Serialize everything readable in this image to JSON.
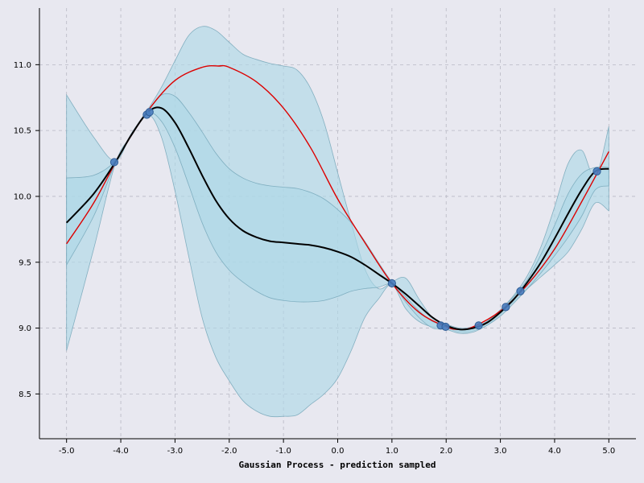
{
  "chart_data": {
    "type": "line",
    "title": "",
    "xlabel": "Gaussian Process - prediction sampled",
    "ylabel": "",
    "xlim": [
      -5.5,
      5.5
    ],
    "ylim": [
      8.16,
      11.43
    ],
    "x_ticks": [
      -5.0,
      -4.0,
      -3.0,
      -2.0,
      -1.0,
      0.0,
      1.0,
      2.0,
      3.0,
      4.0,
      5.0
    ],
    "x_tick_labels": [
      "-5.0",
      "-4.0",
      "-3.0",
      "-2.0",
      "-1.0",
      "0.0",
      "1.0",
      "2.0",
      "3.0",
      "4.0",
      "5.0"
    ],
    "y_ticks": [
      8.5,
      9.0,
      9.5,
      10.0,
      10.5,
      11.0
    ],
    "y_tick_labels": [
      "8.5",
      "9.0",
      "9.5",
      "10.0",
      "10.5",
      "11.0"
    ],
    "grid": true,
    "colors": {
      "background": "#e8e8f0",
      "band_fill": "#add8e6",
      "band_stroke": "#6fa3b5",
      "true_function": "#dd0000",
      "mean": "#000000",
      "points": "#4a7dbf",
      "grid": "#b8b8c4"
    },
    "series": [
      {
        "role": "true-function",
        "x": [
          -5.0,
          -4.5,
          -4.0,
          -3.5,
          -3.0,
          -2.5,
          -2.2,
          -2.0,
          -1.5,
          -1.0,
          -0.5,
          0.0,
          0.5,
          1.0,
          1.5,
          2.0,
          2.25,
          2.5,
          3.0,
          3.5,
          4.0,
          4.5,
          5.0
        ],
        "y": [
          9.64,
          9.95,
          10.33,
          10.65,
          10.88,
          10.98,
          10.99,
          10.98,
          10.87,
          10.67,
          10.37,
          9.98,
          9.65,
          9.34,
          9.12,
          9.01,
          8.99,
          9.01,
          9.13,
          9.33,
          9.6,
          9.96,
          10.34
        ]
      },
      {
        "role": "posterior-mean",
        "x": [
          -5.0,
          -4.5,
          -4.1,
          -3.8,
          -3.5,
          -3.25,
          -3.0,
          -2.75,
          -2.5,
          -2.25,
          -2.0,
          -1.75,
          -1.5,
          -1.25,
          -1.0,
          -0.75,
          -0.5,
          -0.25,
          0.0,
          0.25,
          0.5,
          0.75,
          1.0,
          1.25,
          1.5,
          1.75,
          2.0,
          2.25,
          2.5,
          2.75,
          3.0,
          3.25,
          3.5,
          3.75,
          4.0,
          4.25,
          4.5,
          4.75,
          5.0
        ],
        "y": [
          9.8,
          10.02,
          10.26,
          10.47,
          10.64,
          10.67,
          10.56,
          10.37,
          10.16,
          9.97,
          9.83,
          9.74,
          9.69,
          9.66,
          9.65,
          9.64,
          9.63,
          9.61,
          9.58,
          9.54,
          9.48,
          9.41,
          9.34,
          9.26,
          9.17,
          9.08,
          9.02,
          8.99,
          9.0,
          9.04,
          9.12,
          9.22,
          9.35,
          9.5,
          9.68,
          9.87,
          10.05,
          10.19,
          10.21
        ]
      }
    ],
    "bands": [
      {
        "role": "outer-band",
        "x": [
          -5.0,
          -4.5,
          -4.1,
          -3.8,
          -3.5,
          -3.25,
          -3.0,
          -2.75,
          -2.5,
          -2.25,
          -2.0,
          -1.75,
          -1.5,
          -1.25,
          -1.0,
          -0.75,
          -0.5,
          -0.25,
          0.0,
          0.25,
          0.5,
          0.75,
          1.0,
          1.25,
          1.5,
          1.75,
          2.0,
          2.25,
          2.5,
          2.75,
          3.0,
          3.25,
          3.5,
          3.75,
          4.0,
          4.25,
          4.5,
          4.75,
          5.0
        ],
        "upper": [
          10.77,
          10.45,
          10.27,
          10.48,
          10.66,
          10.83,
          11.03,
          11.22,
          11.29,
          11.26,
          11.17,
          11.08,
          11.04,
          11.01,
          10.99,
          10.96,
          10.82,
          10.56,
          10.18,
          9.8,
          9.45,
          9.3,
          9.35,
          9.38,
          9.22,
          9.08,
          9.03,
          9.0,
          9.01,
          9.05,
          9.14,
          9.25,
          9.4,
          9.62,
          9.92,
          10.25,
          10.35,
          10.15,
          10.53
        ],
        "lower": [
          8.83,
          9.6,
          10.25,
          10.46,
          10.62,
          10.45,
          10.04,
          9.55,
          9.08,
          8.78,
          8.6,
          8.45,
          8.37,
          8.33,
          8.33,
          8.34,
          8.42,
          8.5,
          8.62,
          8.83,
          9.08,
          9.22,
          9.33,
          9.15,
          9.05,
          9.01,
          9.0,
          8.97,
          8.98,
          9.02,
          9.1,
          9.2,
          9.3,
          9.39,
          9.48,
          9.58,
          9.75,
          9.95,
          9.89
        ]
      },
      {
        "role": "inner-band",
        "x": [
          -5.0,
          -4.5,
          -4.1,
          -3.8,
          -3.5,
          -3.25,
          -3.0,
          -2.75,
          -2.5,
          -2.25,
          -2.0,
          -1.75,
          -1.5,
          -1.25,
          -1.0,
          -0.75,
          -0.5,
          -0.25,
          0.0,
          0.25,
          0.5,
          0.75,
          1.0,
          1.25,
          1.5,
          1.75,
          2.0,
          2.25,
          2.5,
          2.75,
          3.0,
          3.25,
          3.5,
          3.75,
          4.0,
          4.25,
          4.5,
          4.75,
          5.0
        ],
        "upper": [
          10.14,
          10.16,
          10.27,
          10.48,
          10.65,
          10.77,
          10.76,
          10.64,
          10.49,
          10.33,
          10.21,
          10.14,
          10.1,
          10.08,
          10.07,
          10.06,
          10.03,
          9.98,
          9.9,
          9.8,
          9.66,
          9.5,
          9.35,
          9.24,
          9.13,
          9.05,
          9.02,
          8.99,
          9.0,
          9.05,
          9.13,
          9.24,
          9.37,
          9.56,
          9.78,
          10.02,
          10.17,
          10.22,
          10.22
        ],
        "lower": [
          9.48,
          9.85,
          10.25,
          10.46,
          10.63,
          10.57,
          10.37,
          10.09,
          9.8,
          9.58,
          9.44,
          9.35,
          9.28,
          9.23,
          9.21,
          9.2,
          9.2,
          9.21,
          9.24,
          9.28,
          9.3,
          9.31,
          9.33,
          9.2,
          9.08,
          9.0,
          8.99,
          8.96,
          8.97,
          9.02,
          9.09,
          9.19,
          9.3,
          9.42,
          9.55,
          9.69,
          9.85,
          10.05,
          10.08
        ]
      }
    ],
    "points": {
      "x": [
        -4.12,
        -3.52,
        -3.47,
        1.0,
        1.9,
        1.99,
        2.6,
        3.1,
        3.37,
        4.78
      ],
      "y": [
        10.26,
        10.62,
        10.64,
        9.34,
        9.02,
        9.01,
        9.02,
        9.16,
        9.28,
        10.19
      ]
    }
  }
}
